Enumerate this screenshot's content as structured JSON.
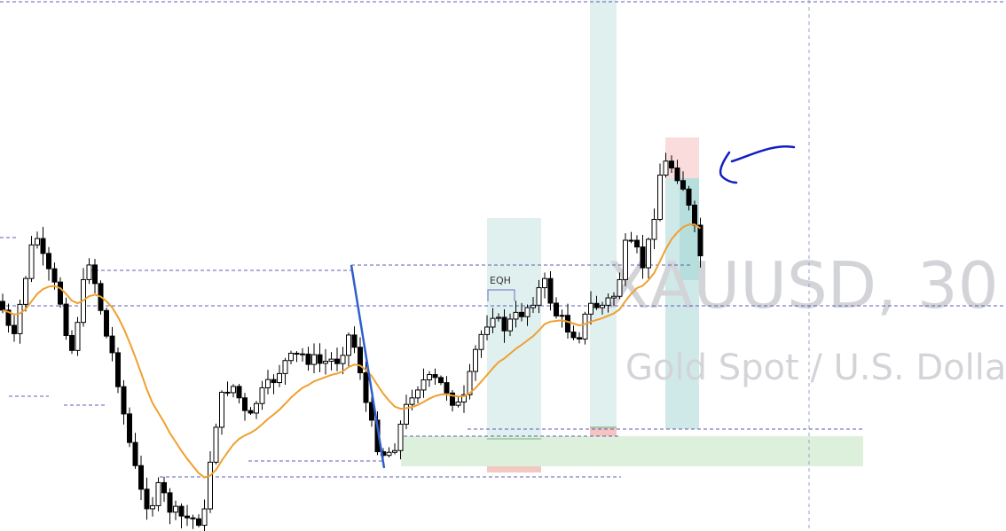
{
  "watermark": {
    "symbol": "XAUUSD, 30",
    "description": "Gold Spot / U.S. Dolla"
  },
  "annotations": {
    "eqh": "EQH"
  }
}
